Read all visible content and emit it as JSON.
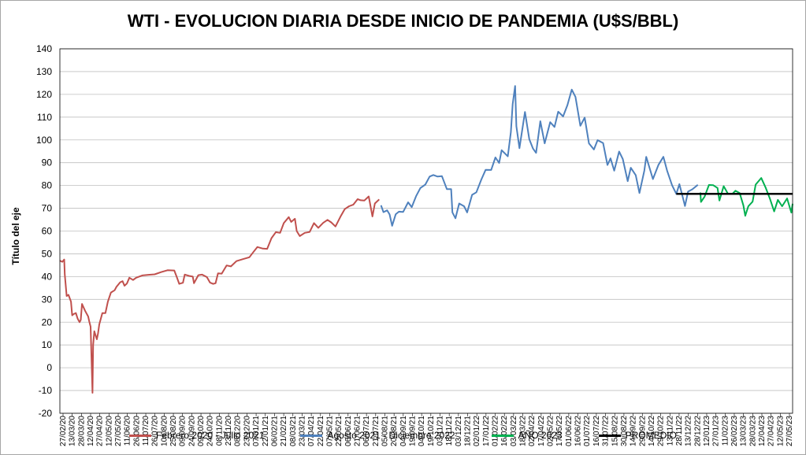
{
  "chart_data": {
    "type": "line",
    "title": "WTI - EVOLUCION DIARIA DESDE INICIO DE PANDEMIA (U$S/BBL)",
    "ylabel": "Título del eje",
    "xlabel": "",
    "ylim": [
      -20,
      140
    ],
    "yticks": [
      -20,
      -10,
      0,
      10,
      20,
      30,
      40,
      50,
      60,
      70,
      80,
      90,
      100,
      110,
      120,
      130,
      140
    ],
    "grid": true,
    "legend_position": "bottom",
    "x_tick_labels": [
      "27/02/20",
      "13/03/20",
      "28/03/20",
      "12/04/20",
      "27/04/20",
      "12/05/20",
      "27/05/20",
      "11/06/20",
      "26/06/20",
      "11/07/20",
      "26/07/20",
      "10/08/20",
      "25/08/20",
      "09/09/20",
      "24/09/20",
      "09/10/20",
      "24/10/20",
      "08/11/20",
      "23/11/20",
      "08/12/20",
      "23/12/20",
      "07/01/21",
      "22/01/21",
      "06/02/21",
      "21/02/21",
      "08/03/21",
      "23/03/21",
      "07/04/21",
      "22/04/21",
      "07/05/21",
      "22/05/21",
      "06/06/21",
      "21/06/21",
      "06/07/21",
      "21/07/21",
      "05/08/21",
      "20/08/21",
      "04/09/21",
      "19/09/21",
      "04/10/21",
      "19/10/21",
      "03/11/21",
      "18/11/21",
      "03/12/21",
      "18/12/21",
      "02/01/22",
      "17/01/22",
      "01/02/22",
      "16/02/22",
      "03/03/22",
      "18/03/22",
      "02/04/22",
      "17/04/22",
      "02/05/22",
      "17/05/22",
      "01/06/22",
      "16/06/22",
      "01/07/22",
      "16/07/22",
      "31/07/22",
      "15/08/22",
      "30/08/22",
      "14/09/22",
      "29/09/22",
      "14/10/22",
      "29/10/22",
      "13/11/22",
      "28/11/22",
      "13/12/22",
      "28/12/22",
      "12/01/23",
      "27/01/23",
      "11/02/23",
      "26/02/23",
      "13/03/23",
      "28/03/23",
      "12/04/23",
      "27/04/23",
      "12/05/23",
      "27/05/23"
    ],
    "x_start": "2020-02-27",
    "x_end": "2023-06-02",
    "series": [
      {
        "name": "Febrero 2020 - Julio 2021",
        "color": "#c0504d",
        "points": [
          [
            "2020-02-27",
            47
          ],
          [
            "2020-03-02",
            46.5
          ],
          [
            "2020-03-05",
            47.5
          ],
          [
            "2020-03-06",
            41
          ],
          [
            "2020-03-09",
            31.5
          ],
          [
            "2020-03-12",
            32
          ],
          [
            "2020-03-16",
            29
          ],
          [
            "2020-03-18",
            23
          ],
          [
            "2020-03-20",
            23.5
          ],
          [
            "2020-03-24",
            24
          ],
          [
            "2020-03-27",
            21.5
          ],
          [
            "2020-03-30",
            20
          ],
          [
            "2020-04-01",
            21
          ],
          [
            "2020-04-03",
            28
          ],
          [
            "2020-04-08",
            25
          ],
          [
            "2020-04-13",
            22.5
          ],
          [
            "2020-04-15",
            20
          ],
          [
            "2020-04-17",
            18
          ],
          [
            "2020-04-20",
            -11
          ],
          [
            "2020-04-21",
            10
          ],
          [
            "2020-04-23",
            16
          ],
          [
            "2020-04-27",
            12.5
          ],
          [
            "2020-04-29",
            15
          ],
          [
            "2020-05-01",
            19
          ],
          [
            "2020-05-06",
            24
          ],
          [
            "2020-05-11",
            24
          ],
          [
            "2020-05-15",
            29
          ],
          [
            "2020-05-20",
            33
          ],
          [
            "2020-05-26",
            34
          ],
          [
            "2020-05-29",
            35.5
          ],
          [
            "2020-06-04",
            37.5
          ],
          [
            "2020-06-08",
            38
          ],
          [
            "2020-06-11",
            36
          ],
          [
            "2020-06-15",
            37
          ],
          [
            "2020-06-19",
            39.5
          ],
          [
            "2020-06-25",
            38.5
          ],
          [
            "2020-06-30",
            39.5
          ],
          [
            "2020-07-10",
            40.5
          ],
          [
            "2020-07-20",
            40.8
          ],
          [
            "2020-07-30",
            41
          ],
          [
            "2020-08-10",
            42
          ],
          [
            "2020-08-20",
            42.8
          ],
          [
            "2020-08-31",
            42.7
          ],
          [
            "2020-09-04",
            39.8
          ],
          [
            "2020-09-08",
            36.8
          ],
          [
            "2020-09-14",
            37.3
          ],
          [
            "2020-09-17",
            40.9
          ],
          [
            "2020-09-24",
            40.3
          ],
          [
            "2020-09-30",
            40
          ],
          [
            "2020-10-02",
            37.1
          ],
          [
            "2020-10-09",
            40.6
          ],
          [
            "2020-10-15",
            40.9
          ],
          [
            "2020-10-23",
            39.8
          ],
          [
            "2020-10-28",
            37.4
          ],
          [
            "2020-11-02",
            36.8
          ],
          [
            "2020-11-06",
            37.1
          ],
          [
            "2020-11-10",
            41.4
          ],
          [
            "2020-11-16",
            41.3
          ],
          [
            "2020-11-24",
            44.9
          ],
          [
            "2020-12-01",
            44.5
          ],
          [
            "2020-12-10",
            46.8
          ],
          [
            "2020-12-21",
            47.7
          ],
          [
            "2020-12-31",
            48.5
          ],
          [
            "2021-01-06",
            50.6
          ],
          [
            "2021-01-13",
            53
          ],
          [
            "2021-01-22",
            52.3
          ],
          [
            "2021-01-29",
            52.2
          ],
          [
            "2021-02-05",
            56.9
          ],
          [
            "2021-02-12",
            59.5
          ],
          [
            "2021-02-19",
            59.2
          ],
          [
            "2021-02-25",
            63.5
          ],
          [
            "2021-03-05",
            66.1
          ],
          [
            "2021-03-09",
            64
          ],
          [
            "2021-03-15",
            65.4
          ],
          [
            "2021-03-18",
            60
          ],
          [
            "2021-03-23",
            57.8
          ],
          [
            "2021-03-31",
            59.2
          ],
          [
            "2021-04-08",
            59.6
          ],
          [
            "2021-04-15",
            63.5
          ],
          [
            "2021-04-22",
            61.4
          ],
          [
            "2021-04-30",
            63.6
          ],
          [
            "2021-05-07",
            64.9
          ],
          [
            "2021-05-13",
            63.8
          ],
          [
            "2021-05-20",
            62
          ],
          [
            "2021-05-28",
            66.3
          ],
          [
            "2021-06-04",
            69.6
          ],
          [
            "2021-06-11",
            70.9
          ],
          [
            "2021-06-18",
            71.6
          ],
          [
            "2021-06-25",
            74
          ],
          [
            "2021-06-30",
            73.5
          ],
          [
            "2021-07-06",
            73.4
          ],
          [
            "2021-07-13",
            75.2
          ],
          [
            "2021-07-19",
            66.4
          ],
          [
            "2021-07-23",
            72.1
          ],
          [
            "2021-07-30",
            73.9
          ]
        ]
      },
      {
        "name": "Agosto 2021 - Diciembre 2022",
        "color": "#4f81bd",
        "points": [
          [
            "2021-08-02",
            71.3
          ],
          [
            "2021-08-06",
            68.3
          ],
          [
            "2021-08-12",
            69.1
          ],
          [
            "2021-08-16",
            67.3
          ],
          [
            "2021-08-20",
            62.3
          ],
          [
            "2021-08-26",
            67.4
          ],
          [
            "2021-08-31",
            68.5
          ],
          [
            "2021-09-07",
            68.4
          ],
          [
            "2021-09-15",
            72.6
          ],
          [
            "2021-09-21",
            70.5
          ],
          [
            "2021-09-28",
            75.3
          ],
          [
            "2021-10-05",
            78.9
          ],
          [
            "2021-10-13",
            80.4
          ],
          [
            "2021-10-20",
            83.9
          ],
          [
            "2021-10-26",
            84.6
          ],
          [
            "2021-11-02",
            83.9
          ],
          [
            "2021-11-09",
            84.1
          ],
          [
            "2021-11-17",
            78.4
          ],
          [
            "2021-11-24",
            78.4
          ],
          [
            "2021-11-26",
            68.2
          ],
          [
            "2021-12-01",
            65.6
          ],
          [
            "2021-12-07",
            72.1
          ],
          [
            "2021-12-15",
            70.9
          ],
          [
            "2021-12-20",
            68.2
          ],
          [
            "2021-12-28",
            75.9
          ],
          [
            "2022-01-04",
            77
          ],
          [
            "2022-01-12",
            82.6
          ],
          [
            "2022-01-19",
            86.9
          ],
          [
            "2022-01-28",
            86.8
          ],
          [
            "2022-02-04",
            92.3
          ],
          [
            "2022-02-10",
            89.9
          ],
          [
            "2022-02-14",
            95.5
          ],
          [
            "2022-02-24",
            92.8
          ],
          [
            "2022-03-01",
            103.4
          ],
          [
            "2022-03-04",
            115.7
          ],
          [
            "2022-03-08",
            123.7
          ],
          [
            "2022-03-10",
            106
          ],
          [
            "2022-03-15",
            96.4
          ],
          [
            "2022-03-24",
            112.3
          ],
          [
            "2022-03-31",
            100.3
          ],
          [
            "2022-04-06",
            96.2
          ],
          [
            "2022-04-11",
            94.3
          ],
          [
            "2022-04-18",
            108.2
          ],
          [
            "2022-04-25",
            98.5
          ],
          [
            "2022-05-04",
            107.8
          ],
          [
            "2022-05-11",
            105.7
          ],
          [
            "2022-05-17",
            112.4
          ],
          [
            "2022-05-25",
            110.3
          ],
          [
            "2022-06-01",
            115.3
          ],
          [
            "2022-06-08",
            122.1
          ],
          [
            "2022-06-14",
            118.9
          ],
          [
            "2022-06-22",
            106.2
          ],
          [
            "2022-06-29",
            109.8
          ],
          [
            "2022-07-06",
            98.5
          ],
          [
            "2022-07-14",
            95.8
          ],
          [
            "2022-07-20",
            99.9
          ],
          [
            "2022-07-29",
            98.6
          ],
          [
            "2022-08-05",
            89
          ],
          [
            "2022-08-10",
            91.9
          ],
          [
            "2022-08-16",
            86.5
          ],
          [
            "2022-08-24",
            94.9
          ],
          [
            "2022-08-30",
            91.6
          ],
          [
            "2022-09-07",
            81.9
          ],
          [
            "2022-09-12",
            87.8
          ],
          [
            "2022-09-20",
            84.5
          ],
          [
            "2022-09-26",
            76.7
          ],
          [
            "2022-10-04",
            86.5
          ],
          [
            "2022-10-07",
            92.6
          ],
          [
            "2022-10-18",
            82.8
          ],
          [
            "2022-10-27",
            89.1
          ],
          [
            "2022-11-04",
            92.6
          ],
          [
            "2022-11-10",
            86.5
          ],
          [
            "2022-11-18",
            80.1
          ],
          [
            "2022-11-25",
            76.3
          ],
          [
            "2022-11-30",
            80.6
          ],
          [
            "2022-12-06",
            74.3
          ],
          [
            "2022-12-09",
            71
          ],
          [
            "2022-12-14",
            77.3
          ],
          [
            "2022-12-21",
            78.3
          ],
          [
            "2022-12-30",
            80.3
          ]
        ]
      },
      {
        "name": "AÑO 2023",
        "color": "#00b050",
        "points": [
          [
            "2023-01-03",
            76.9
          ],
          [
            "2023-01-04",
            72.8
          ],
          [
            "2023-01-10",
            75.1
          ],
          [
            "2023-01-17",
            80.2
          ],
          [
            "2023-01-24",
            80.1
          ],
          [
            "2023-01-31",
            78.9
          ],
          [
            "2023-02-03",
            73.4
          ],
          [
            "2023-02-10",
            79.7
          ],
          [
            "2023-02-17",
            76.3
          ],
          [
            "2023-02-24",
            76.3
          ],
          [
            "2023-03-01",
            77.7
          ],
          [
            "2023-03-08",
            76.7
          ],
          [
            "2023-03-14",
            71.3
          ],
          [
            "2023-03-17",
            66.7
          ],
          [
            "2023-03-22",
            70.9
          ],
          [
            "2023-03-29",
            72.9
          ],
          [
            "2023-04-03",
            80.4
          ],
          [
            "2023-04-12",
            83.3
          ],
          [
            "2023-04-19",
            79.2
          ],
          [
            "2023-04-26",
            74.3
          ],
          [
            "2023-05-03",
            68.6
          ],
          [
            "2023-05-09",
            73.7
          ],
          [
            "2023-05-16",
            70.9
          ],
          [
            "2023-05-24",
            74.3
          ],
          [
            "2023-05-31",
            68.1
          ],
          [
            "2023-06-02",
            72
          ]
        ]
      },
      {
        "name": "PROMEDIO",
        "color": "#000000",
        "points": [
          [
            "2022-11-25",
            76.3
          ],
          [
            "2023-06-02",
            76.3
          ]
        ]
      }
    ]
  }
}
